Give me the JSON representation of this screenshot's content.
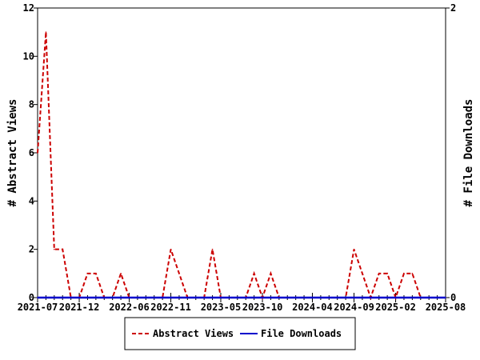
{
  "chart_data": {
    "type": "line",
    "title": "",
    "xlabel": "",
    "ylabel": "# Abstract Views",
    "y2label": "# File Downloads",
    "ylim": [
      0,
      12
    ],
    "y2lim": [
      0,
      2
    ],
    "yticks": [
      "0",
      "2",
      "4",
      "6",
      "8",
      "10",
      "12"
    ],
    "y2ticks": [
      "0",
      "2"
    ],
    "x_start": "2021-07",
    "x_end": "2025-08",
    "xtick_labels": [
      {
        "month_index": 0,
        "label": "2021-07"
      },
      {
        "month_index": 5,
        "label": "2021-12"
      },
      {
        "month_index": 11,
        "label": "2022-06"
      },
      {
        "month_index": 16,
        "label": "2022-11"
      },
      {
        "month_index": 22,
        "label": "2023-05"
      },
      {
        "month_index": 27,
        "label": "2023-10"
      },
      {
        "month_index": 33,
        "label": "2024-04"
      },
      {
        "month_index": 38,
        "label": "2024-09"
      },
      {
        "month_index": 43,
        "label": "2025-02"
      },
      {
        "month_index": 49,
        "label": "2025-08"
      }
    ],
    "series": [
      {
        "name": "Abstract Views",
        "axis": "left",
        "color": "#cc0000",
        "style": "dashed",
        "values": [
          6,
          11,
          2,
          2,
          0,
          0,
          1,
          1,
          0,
          0,
          1,
          0,
          0,
          0,
          0,
          0,
          2,
          1,
          0,
          0,
          0,
          2,
          0,
          0,
          0,
          0,
          1,
          0,
          1,
          0,
          0,
          0,
          0,
          0,
          0,
          0,
          0,
          0,
          2,
          1,
          0,
          1,
          1,
          0,
          1,
          1,
          0,
          0,
          0,
          0
        ]
      },
      {
        "name": "File Downloads",
        "axis": "right",
        "color": "#0000cc",
        "style": "solid",
        "values": [
          0,
          0,
          0,
          0,
          0,
          0,
          0,
          0,
          0,
          0,
          0,
          0,
          0,
          0,
          0,
          0,
          0,
          0,
          0,
          0,
          0,
          0,
          0,
          0,
          0,
          0,
          0,
          0,
          0,
          0,
          0,
          0,
          0,
          0,
          0,
          0,
          0,
          0,
          0,
          0,
          0,
          0,
          0,
          0,
          0,
          0,
          0,
          0,
          0,
          0
        ]
      }
    ],
    "legend_position": "bottom",
    "grid": false
  }
}
